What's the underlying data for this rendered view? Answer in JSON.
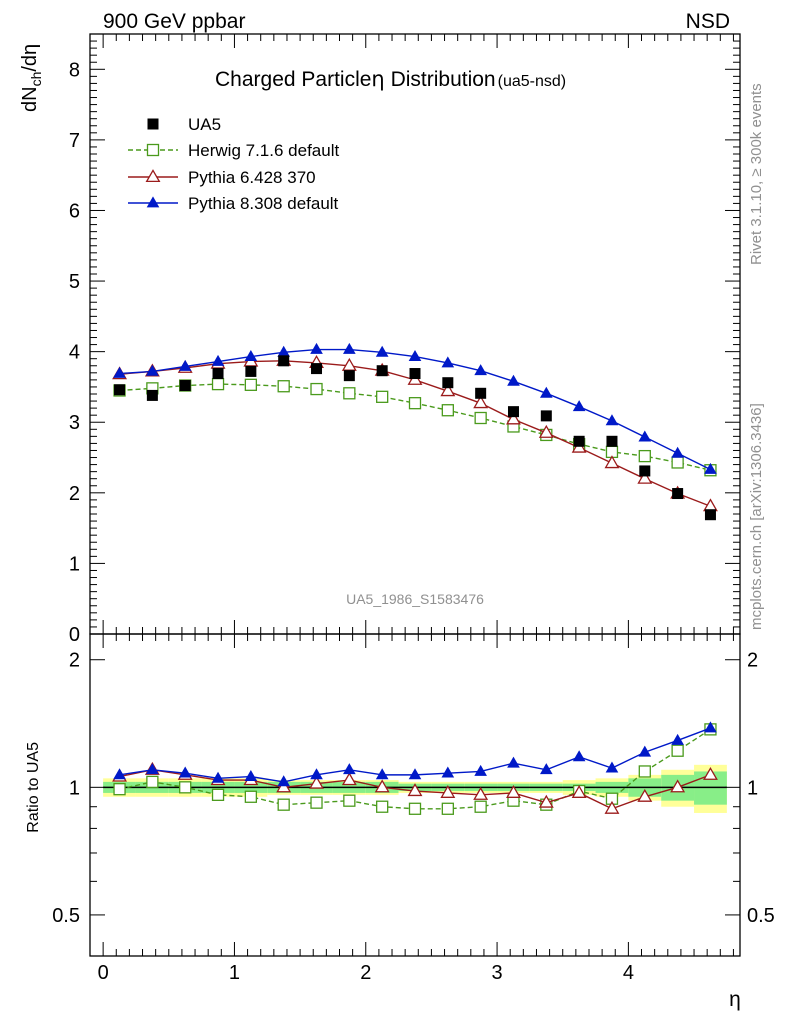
{
  "header": {
    "left": "900 GeV ppbar",
    "right": "NSD",
    "title_main": "Charged Particle",
    "title_eta": "η",
    "title_rest": " Distribution",
    "title_tag": "(ua5-nsd)",
    "watermark": "UA5_1986_S1583476",
    "side_right_top": "Rivet 3.1.10, ≥ 300k events",
    "side_right_bottom": "mcplots.cern.ch [arXiv:1306.3436]"
  },
  "chart_data": [
    {
      "panel": "main",
      "type": "scatter",
      "ylabel": "dN_ch/dη",
      "ylim": [
        0,
        8.5
      ],
      "xlim": [
        -0.1,
        4.85
      ],
      "y_ticks": [
        0,
        1,
        2,
        3,
        4,
        5,
        6,
        7,
        8
      ],
      "legend_position": "top-left",
      "x": [
        0.125,
        0.375,
        0.625,
        0.875,
        1.125,
        1.375,
        1.625,
        1.875,
        2.125,
        2.375,
        2.625,
        2.875,
        3.125,
        3.375,
        3.625,
        3.875,
        4.125,
        4.375,
        4.625
      ],
      "series": [
        {
          "name": "UA5",
          "marker": "filled-square",
          "color": "#000000",
          "values": [
            3.46,
            3.38,
            3.52,
            3.69,
            3.72,
            3.87,
            3.76,
            3.66,
            3.73,
            3.69,
            3.56,
            3.41,
            3.15,
            3.09,
            2.73,
            2.73,
            2.31,
            1.99,
            1.69
          ]
        },
        {
          "name": "Herwig 7.1.6 default",
          "marker": "open-square",
          "color": "#4a9a1c",
          "dashed": true,
          "values": [
            3.45,
            3.48,
            3.52,
            3.54,
            3.53,
            3.51,
            3.47,
            3.41,
            3.36,
            3.27,
            3.17,
            3.06,
            2.94,
            2.82,
            2.69,
            2.58,
            2.52,
            2.43,
            2.32
          ]
        },
        {
          "name": "Pythia 6.428 370",
          "marker": "open-triangle",
          "color": "#9b1b1b",
          "values": [
            3.68,
            3.72,
            3.77,
            3.83,
            3.86,
            3.87,
            3.84,
            3.8,
            3.73,
            3.6,
            3.44,
            3.27,
            3.04,
            2.85,
            2.64,
            2.42,
            2.2,
            1.99,
            1.81
          ]
        },
        {
          "name": "Pythia 8.308 default",
          "marker": "filled-triangle",
          "color": "#0019c8",
          "values": [
            3.69,
            3.72,
            3.79,
            3.86,
            3.93,
            3.99,
            4.03,
            4.03,
            3.99,
            3.93,
            3.84,
            3.73,
            3.58,
            3.41,
            3.22,
            3.02,
            2.79,
            2.56,
            2.33
          ]
        }
      ]
    },
    {
      "panel": "ratio",
      "type": "scatter",
      "ylabel": "Ratio to UA5",
      "xlabel": "η",
      "scale": "log",
      "ylim": [
        0.4,
        2.3
      ],
      "xlim": [
        -0.1,
        4.85
      ],
      "y_ticks": [
        0.5,
        1,
        2
      ],
      "y_tick_labels": [
        "0.5",
        "1",
        "2"
      ],
      "x_ticks": [
        0,
        1,
        2,
        3,
        4
      ],
      "x_tick_labels": [
        "0",
        "1",
        "2",
        "3",
        "4"
      ],
      "x": [
        0.125,
        0.375,
        0.625,
        0.875,
        1.125,
        1.375,
        1.625,
        1.875,
        2.125,
        2.375,
        2.625,
        2.875,
        3.125,
        3.375,
        3.625,
        3.875,
        4.125,
        4.375,
        4.625
      ],
      "band_green": [
        0.03,
        0.03,
        0.03,
        0.03,
        0.03,
        0.03,
        0.03,
        0.03,
        0.03,
        0.02,
        0.02,
        0.02,
        0.02,
        0.02,
        0.02,
        0.03,
        0.05,
        0.07,
        0.09
      ],
      "band_yellow": [
        0.05,
        0.05,
        0.05,
        0.05,
        0.05,
        0.04,
        0.04,
        0.04,
        0.04,
        0.03,
        0.03,
        0.03,
        0.03,
        0.03,
        0.04,
        0.05,
        0.07,
        0.1,
        0.13
      ],
      "series": [
        {
          "name": "Herwig 7.1.6 default",
          "marker": "open-square",
          "color": "#4a9a1c",
          "dashed": true,
          "values": [
            0.99,
            1.03,
            1.0,
            0.96,
            0.95,
            0.91,
            0.92,
            0.93,
            0.9,
            0.89,
            0.89,
            0.9,
            0.93,
            0.91,
            0.98,
            0.94,
            1.09,
            1.22,
            1.37
          ]
        },
        {
          "name": "Pythia 6.428 370",
          "marker": "open-triangle",
          "color": "#9b1b1b",
          "values": [
            1.06,
            1.1,
            1.07,
            1.04,
            1.04,
            1.0,
            1.02,
            1.04,
            1.0,
            0.98,
            0.97,
            0.96,
            0.97,
            0.92,
            0.97,
            0.89,
            0.95,
            1.0,
            1.07
          ]
        },
        {
          "name": "Pythia 8.308 default",
          "marker": "filled-triangle",
          "color": "#0019c8",
          "values": [
            1.07,
            1.1,
            1.08,
            1.05,
            1.06,
            1.03,
            1.07,
            1.1,
            1.07,
            1.07,
            1.08,
            1.09,
            1.14,
            1.1,
            1.18,
            1.11,
            1.21,
            1.29,
            1.38
          ]
        }
      ]
    }
  ]
}
